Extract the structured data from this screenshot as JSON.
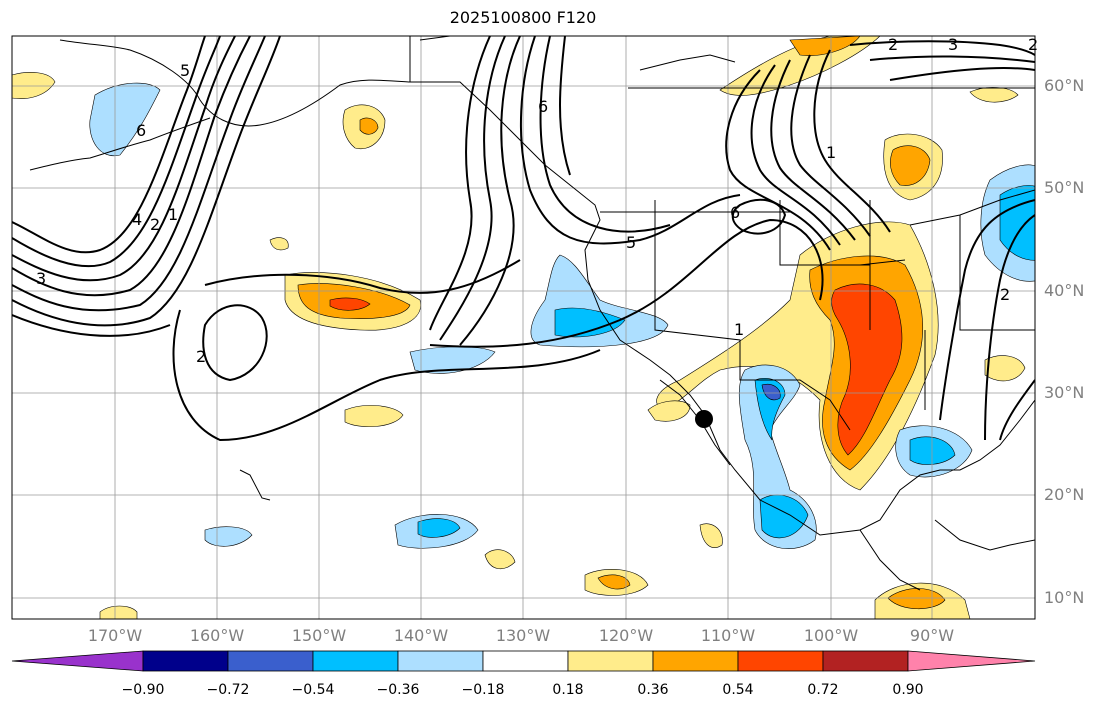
{
  "title": "2025100800 F120",
  "latitude_labels": [
    "60°N",
    "50°N",
    "40°N",
    "30°N",
    "20°N",
    "10°N"
  ],
  "longitude_labels": [
    "170°W",
    "160°W",
    "150°W",
    "140°W",
    "130°W",
    "120°W",
    "110°W",
    "100°W",
    "90°W"
  ],
  "contour_labels": [
    "3",
    "4",
    "2",
    "1",
    "6",
    "5",
    "2",
    "6",
    "5",
    "6",
    "1",
    "1",
    "2",
    "2",
    "3",
    "2"
  ],
  "colorbar": {
    "tick_labels": [
      "−0.90",
      "−0.72",
      "−0.54",
      "−0.36",
      "−0.18",
      "0.18",
      "0.36",
      "0.54",
      "0.72",
      "0.90"
    ],
    "colors": [
      "#9932CC",
      "#00008B",
      "#3A5FCD",
      "#00BFFF",
      "#ADDFFF",
      "#FFFFFF",
      "#FFEC8B",
      "#FFA500",
      "#FF4500",
      "#B22222",
      "#FF82AB"
    ]
  },
  "marker": "observation-point"
}
